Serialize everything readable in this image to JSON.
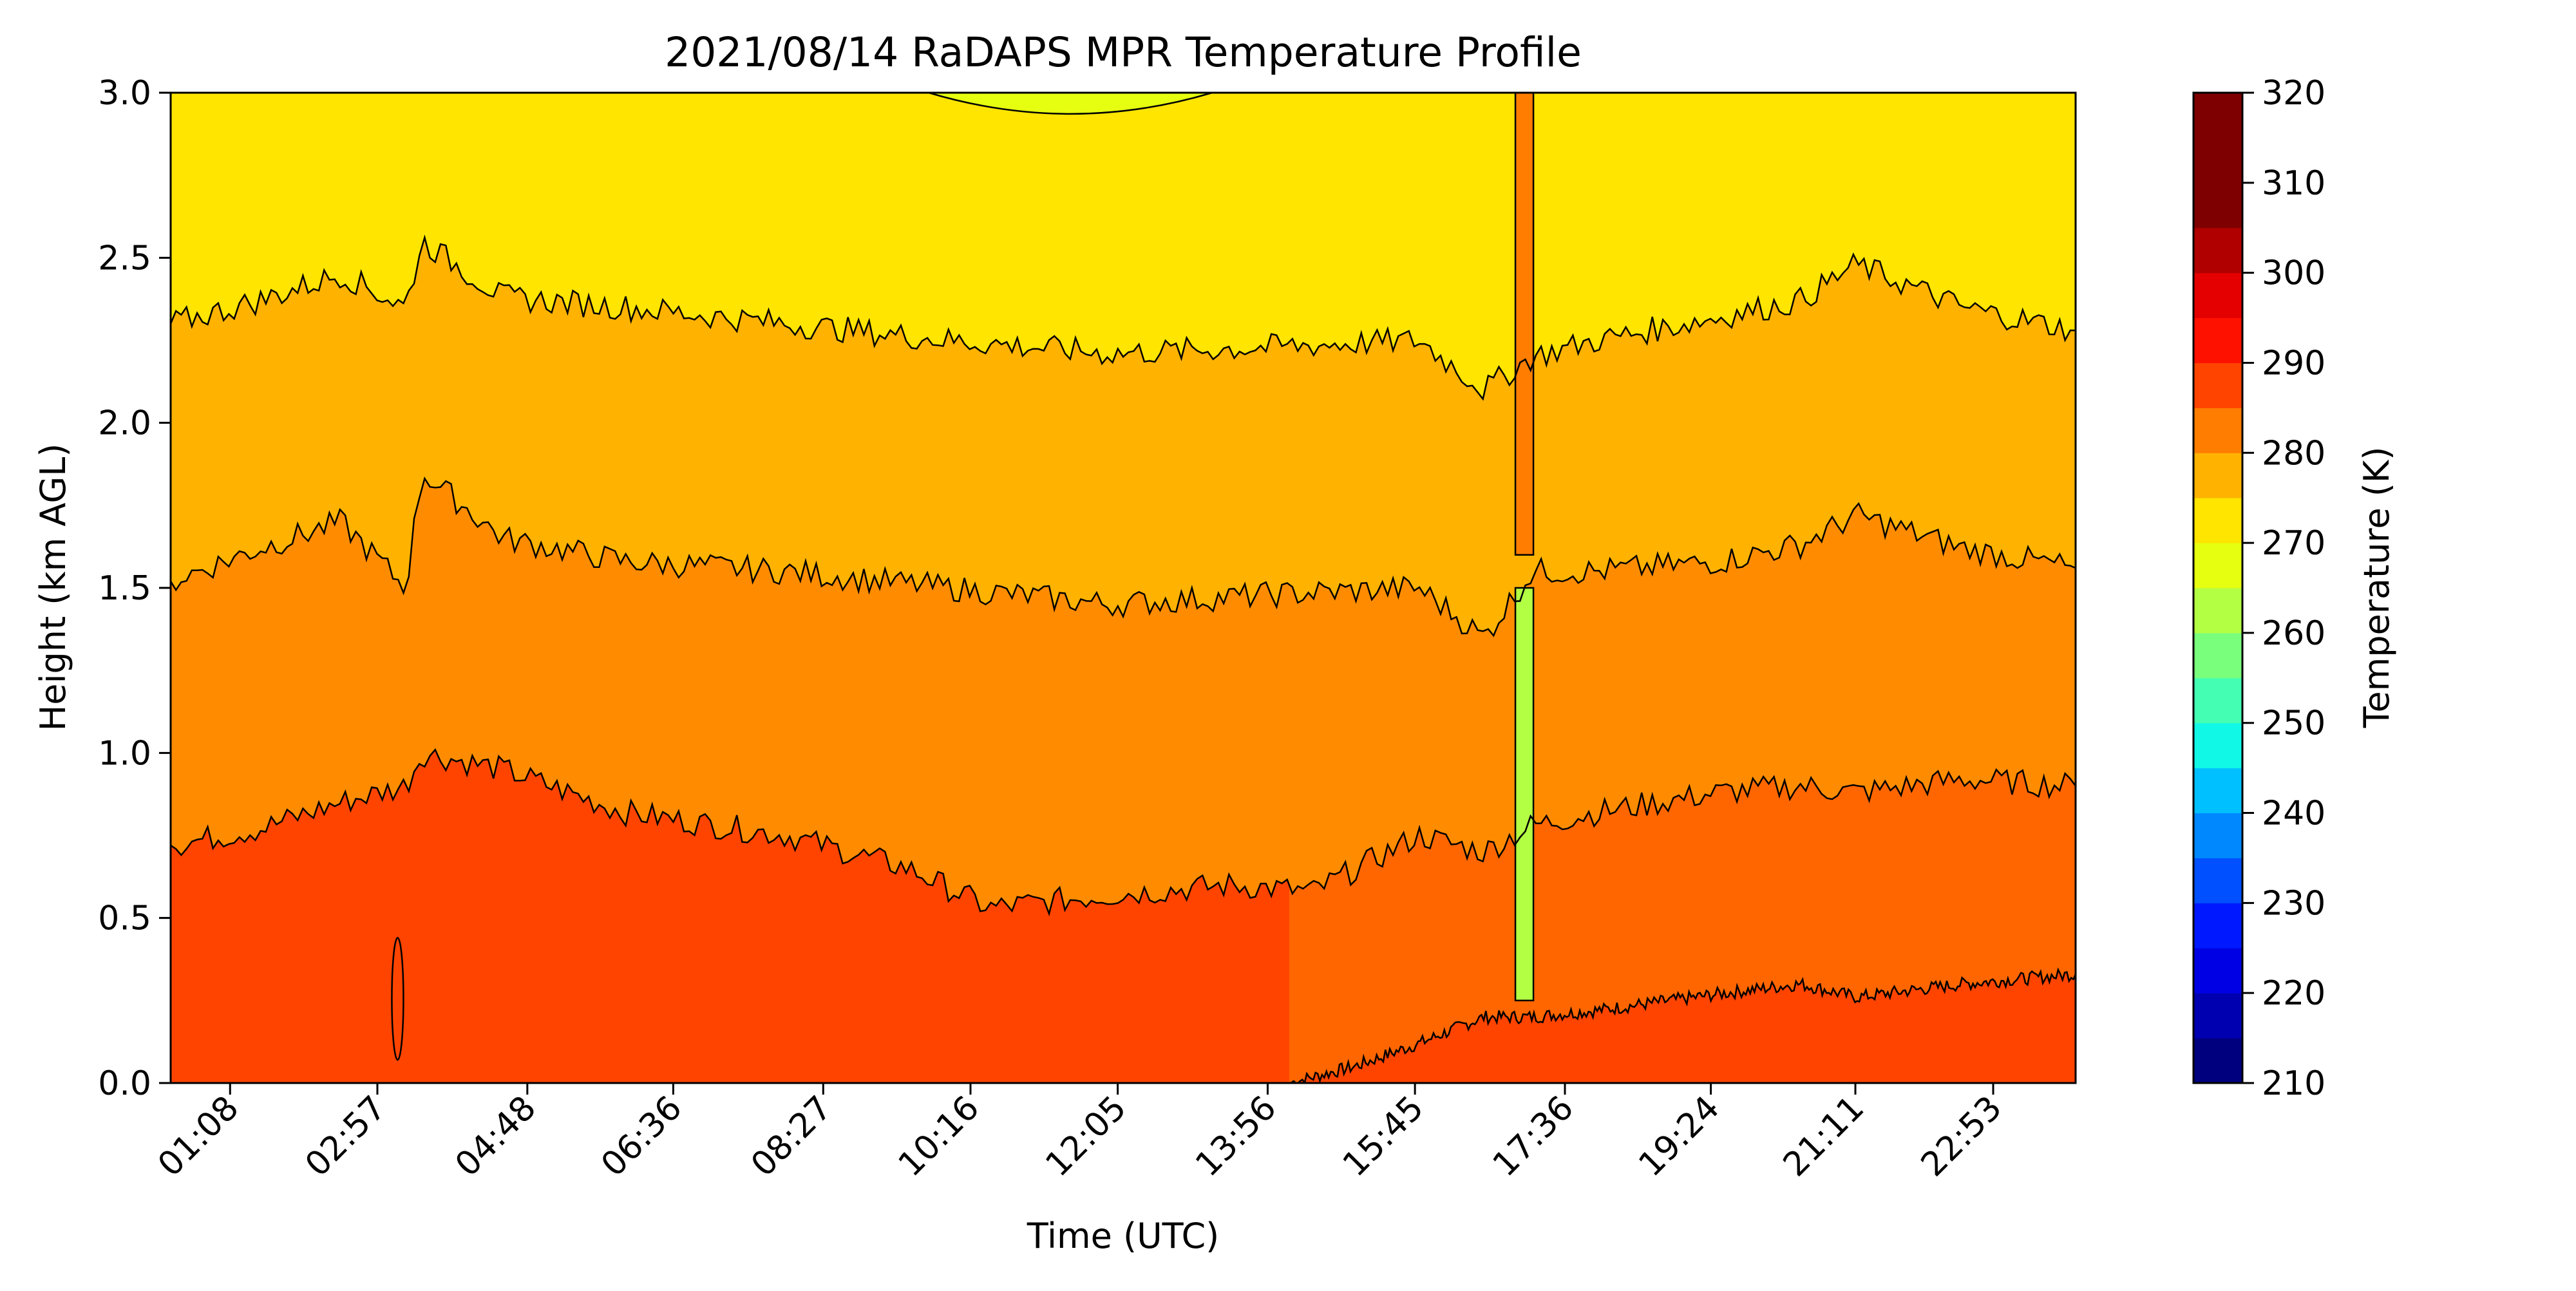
{
  "chart_data": {
    "type": "heatmap",
    "title": "2021/08/14 RaDAPS MPR Temperature Profile",
    "xlabel": "Time (UTC)",
    "ylabel": "Height (km AGL)",
    "colorbar_label": "Temperature (K)",
    "x_tick_labels": [
      "01:08",
      "02:57",
      "04:48",
      "06:36",
      "08:27",
      "10:16",
      "12:05",
      "13:56",
      "15:45",
      "17:36",
      "19:24",
      "21:11",
      "22:53"
    ],
    "x_tick_hours": [
      1.133,
      2.95,
      4.8,
      6.6,
      8.45,
      10.267,
      12.083,
      13.933,
      15.75,
      17.6,
      19.4,
      21.183,
      22.883
    ],
    "xlim_hours": [
      0.4,
      23.9
    ],
    "ylim": [
      0,
      3.0
    ],
    "y_ticks": [
      0.0,
      0.5,
      1.0,
      1.5,
      2.0,
      2.5,
      3.0
    ],
    "y_tick_labels": [
      "0.0",
      "0.5",
      "1.0",
      "1.5",
      "2.0",
      "2.5",
      "3.0"
    ],
    "colorbar_range": [
      210,
      320
    ],
    "colorbar_step": 5,
    "colorbar_tick_values": [
      210,
      220,
      230,
      240,
      250,
      260,
      270,
      280,
      290,
      300,
      310,
      320
    ],
    "colorbar_tick_labels": [
      "210",
      "220",
      "230",
      "240",
      "250",
      "260",
      "270",
      "280",
      "290",
      "300",
      "310",
      "320"
    ],
    "colorbar_colors": [
      "#00007f",
      "#0000b0",
      "#0000e4",
      "#0018ff",
      "#0050ff",
      "#0088ff",
      "#00c0ff",
      "#11f8e6",
      "#44ffb3",
      "#7aff7d",
      "#b3ff44",
      "#e6ff11",
      "#ffe500",
      "#ffb300",
      "#ff7d00",
      "#ff4400",
      "#ff1100",
      "#e40000",
      "#b00000",
      "#7f0000",
      "#7f0000",
      "#7f0000"
    ],
    "grid": false,
    "contour_levels": [
      {
        "level_k": 280,
        "color": "#ffe500",
        "description": "boundary between 275-280 and 280-285 bands",
        "x": [
          0.4,
          1.5,
          2.5,
          3.3,
          3.5,
          4.5,
          6,
          8,
          10,
          12,
          14,
          15.8,
          16.6,
          17.2,
          18,
          19.5,
          20.5,
          21.2,
          22.5,
          23.9
        ],
        "y": [
          2.3,
          2.37,
          2.45,
          2.35,
          2.55,
          2.38,
          2.35,
          2.3,
          2.25,
          2.21,
          2.23,
          2.25,
          2.1,
          2.2,
          2.25,
          2.32,
          2.37,
          2.48,
          2.35,
          2.28
        ]
      },
      {
        "level_k": 285,
        "color": "#ffb300",
        "description": "boundary between 280-285 and 285-290 bands",
        "x": [
          0.4,
          1.5,
          2.5,
          3.3,
          3.5,
          4.5,
          6,
          8,
          10,
          12,
          14,
          15.8,
          16.6,
          17.2,
          18,
          19.5,
          20.5,
          21.2,
          22.5,
          23.9
        ],
        "y": [
          1.52,
          1.62,
          1.7,
          1.5,
          1.85,
          1.65,
          1.58,
          1.55,
          1.5,
          1.45,
          1.48,
          1.5,
          1.35,
          1.55,
          1.55,
          1.58,
          1.63,
          1.72,
          1.62,
          1.56
        ]
      },
      {
        "level_k": 290,
        "color": "#ff7d00",
        "description": "boundary between 285-290 and 290-295 bands",
        "x": [
          0.4,
          1.5,
          2.5,
          3.3,
          3.5,
          4.5,
          6,
          8,
          9.5,
          10.5,
          12,
          13.5,
          14.5,
          15.8,
          16.6,
          17.2,
          18,
          19.5,
          20.5,
          21.2,
          22.5,
          23.9
        ],
        "y": [
          0.72,
          0.77,
          0.85,
          0.9,
          1.0,
          0.95,
          0.82,
          0.75,
          0.65,
          0.53,
          0.57,
          0.6,
          0.58,
          0.75,
          0.7,
          0.78,
          0.82,
          0.88,
          0.9,
          0.88,
          0.92,
          0.9
        ]
      },
      {
        "level_k": 295,
        "color": "#ff4400",
        "description": "boundary between 290-295 and 295-300 bands (afternoon surface layer)",
        "x": [
          14.2,
          15,
          15.8,
          16.6,
          17.2,
          18,
          19.5,
          20.5,
          21.2,
          22.5,
          23.9
        ],
        "y": [
          0.0,
          0.05,
          0.12,
          0.2,
          0.2,
          0.22,
          0.27,
          0.3,
          0.26,
          0.3,
          0.33
        ]
      }
    ],
    "base_band_color": "#ff4400",
    "top_band_color": "#ffe500",
    "annotations": [
      {
        "type": "spike_column",
        "x_hours": 17.1,
        "color": "#ff7d00",
        "y_range": [
          1.6,
          3.0
        ]
      },
      {
        "type": "spike_column",
        "x_hours": 17.1,
        "color": "#b3ff44",
        "y_range": [
          0.25,
          1.5
        ]
      },
      {
        "type": "cool_pocket_top",
        "x_hours": 11.5,
        "color": "#e6ff11",
        "y_range": [
          2.95,
          3.0
        ]
      },
      {
        "type": "warm_ellipse",
        "x_hours": 3.2,
        "color": "#ff4400",
        "y_range": [
          0.07,
          0.44
        ]
      }
    ]
  }
}
